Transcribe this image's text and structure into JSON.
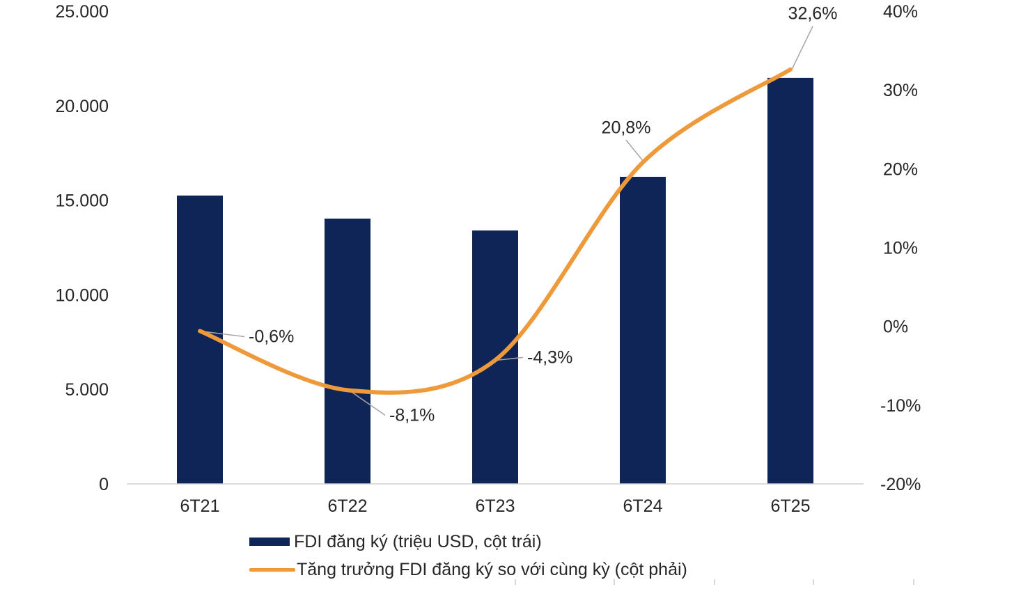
{
  "chart_data": {
    "type": "bar",
    "title": "",
    "xlabel": "",
    "ylabel": "",
    "categories": [
      "6T21",
      "6T22",
      "6T23",
      "6T24",
      "6T25"
    ],
    "series": [
      {
        "name": "FDI đăng ký (triệu USD, cột trái)",
        "type": "bar",
        "axis": "left",
        "color": "#0f2557",
        "values": [
          15250,
          14030,
          13400,
          16240,
          21470
        ]
      },
      {
        "name": "Tăng trưởng FDI đăng ký so với cùng kỳ (cột phải)",
        "type": "line",
        "axis": "right",
        "color": "#ee9a3a",
        "smooth": true,
        "values": [
          -0.6,
          -8.1,
          -4.3,
          20.8,
          32.6
        ],
        "labels": [
          "-0,6%",
          "-8,1%",
          "-4,3%",
          "20,8%",
          "32,6%"
        ]
      }
    ],
    "ylim": [
      0,
      25000
    ],
    "y2lim": [
      -20,
      40
    ],
    "yticks": [
      {
        "value": 0,
        "label": "0"
      },
      {
        "value": 5000,
        "label": "5.000"
      },
      {
        "value": 10000,
        "label": "10.000"
      },
      {
        "value": 15000,
        "label": "15.000"
      },
      {
        "value": 20000,
        "label": "20.000"
      },
      {
        "value": 25000,
        "label": "25.000"
      }
    ],
    "y2ticks": [
      {
        "value": -20,
        "label": "-20%"
      },
      {
        "value": -10,
        "label": "-10%"
      },
      {
        "value": 0,
        "label": "0%"
      },
      {
        "value": 10,
        "label": "10%"
      },
      {
        "value": 20,
        "label": "20%"
      },
      {
        "value": 30,
        "label": "30%"
      },
      {
        "value": 40,
        "label": "40%"
      }
    ],
    "grid": false,
    "legend": "bottom"
  }
}
